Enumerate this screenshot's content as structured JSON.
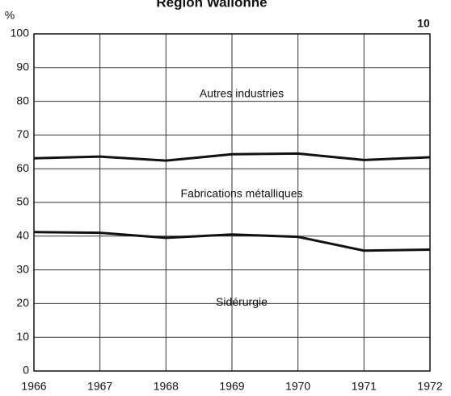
{
  "chart_data": {
    "type": "line",
    "title": "Région Wallonne",
    "figure_number": "10",
    "y_label": "%",
    "x": [
      1966,
      1967,
      1968,
      1969,
      1970,
      1971,
      1972
    ],
    "xlim": [
      1966,
      1972
    ],
    "xticks": [
      1966,
      1967,
      1968,
      1969,
      1970,
      1971,
      1972
    ],
    "ylim": [
      0,
      100
    ],
    "yticks": [
      0,
      10,
      20,
      30,
      40,
      50,
      60,
      70,
      80,
      90,
      100
    ],
    "grid": true,
    "series": [
      {
        "color": "#111111",
        "values": [
          63.1,
          63.6,
          62.4,
          64.3,
          64.5,
          62.6,
          63.4
        ]
      },
      {
        "color": "#111111",
        "values": [
          41.2,
          41.0,
          39.5,
          40.5,
          39.8,
          35.7,
          36.0
        ]
      }
    ],
    "area_labels": [
      "Autres industries",
      "Fabrications métalliques",
      "Sidérurgie"
    ]
  }
}
